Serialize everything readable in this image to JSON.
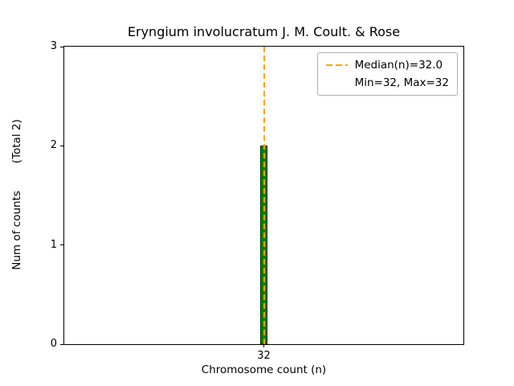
{
  "chart_data": {
    "type": "bar",
    "title": "Eryngium involucratum J. M. Coult. & Rose",
    "xlabel": "Chromosome count (n)",
    "ylabel": "Num of counts",
    "ylabel_total": "(Total 2)",
    "categories": [
      32
    ],
    "values": [
      2
    ],
    "xtick_labels": [
      "32"
    ],
    "yticks": [
      0,
      1,
      2,
      3
    ],
    "ylim": [
      0,
      3
    ],
    "xlim": [
      7,
      57
    ],
    "bar_width": 1,
    "bar_fill": "#008000",
    "bar_edge": "#003300",
    "median": {
      "x": 32,
      "value": 32.0,
      "min": 32,
      "max": 32,
      "color": "#ffa500"
    },
    "legend": {
      "position": "upper right",
      "entries": [
        {
          "label": "Median(n)=32.0",
          "swatch": "dashed-orange-line"
        },
        {
          "label": "Min=32, Max=32",
          "swatch": "none"
        }
      ]
    },
    "grid": false
  }
}
